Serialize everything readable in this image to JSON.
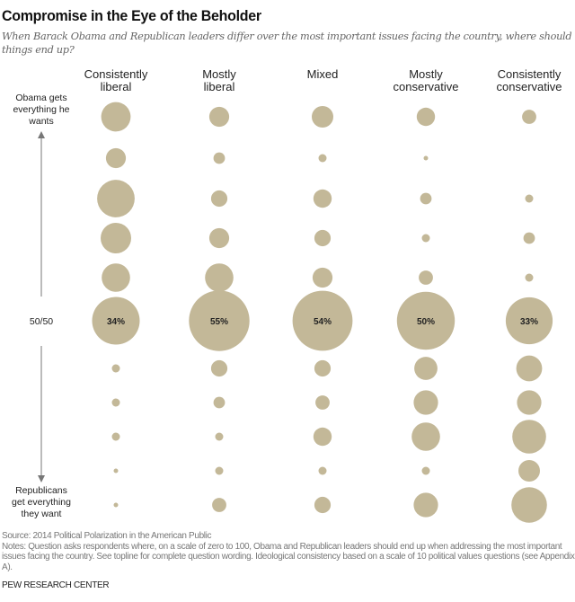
{
  "chart_data": {
    "type": "bubble",
    "title": "Compromise in the Eye of the Beholder",
    "subtitle": "When Barack Obama and Republican leaders differ over the most important issues facing the country, where should things end up?",
    "categories": [
      [
        "Consistently",
        "liberal"
      ],
      [
        "Mostly",
        "liberal"
      ],
      [
        "Mixed"
      ],
      [
        "Mostly",
        "conservative"
      ],
      [
        "Consistently",
        "conservative"
      ]
    ],
    "scale_top_label": [
      "Obama gets",
      "everything he",
      "wants"
    ],
    "scale_mid_label": "50/50",
    "scale_bottom_label": [
      "Republicans",
      "get everything",
      "they want"
    ],
    "unit": "%",
    "series": [
      {
        "name": "Consistently liberal",
        "values": [
          13,
          6,
          21,
          14,
          12,
          34,
          1,
          1,
          1,
          0.3,
          0.3
        ]
      },
      {
        "name": "Mostly liberal",
        "values": [
          6,
          2,
          4,
          6,
          12,
          55,
          4,
          2,
          1,
          1,
          3
        ]
      },
      {
        "name": "Mixed",
        "values": [
          7,
          1,
          5,
          4,
          6,
          54,
          4,
          3,
          5,
          1,
          4
        ]
      },
      {
        "name": "Mostly conservative",
        "values": [
          5,
          0.3,
          2,
          1,
          3,
          50,
          8,
          9,
          12,
          1,
          9
        ]
      },
      {
        "name": "Consistently conservative",
        "values": [
          3,
          0,
          1,
          2,
          1,
          33,
          10,
          9,
          17,
          7,
          19
        ]
      }
    ],
    "labeled_row": 5,
    "data_labels": [
      "34%",
      "55%",
      "54%",
      "50%",
      "33%"
    ]
  },
  "footer": {
    "source": "Source: 2014 Political Polarization in the American Public",
    "notes": "Notes: Question asks respondents where, on a scale of zero to 100, Obama and Republican leaders should end up when addressing the most important issues facing the country. See topline for complete question wording. Ideological consistency based on a scale of 10 political values questions (see Appendix A).",
    "brand": "PEW RESEARCH CENTER"
  },
  "colors": {
    "bubble": "#c3b898",
    "text": "#222222",
    "axis": "#777777"
  }
}
